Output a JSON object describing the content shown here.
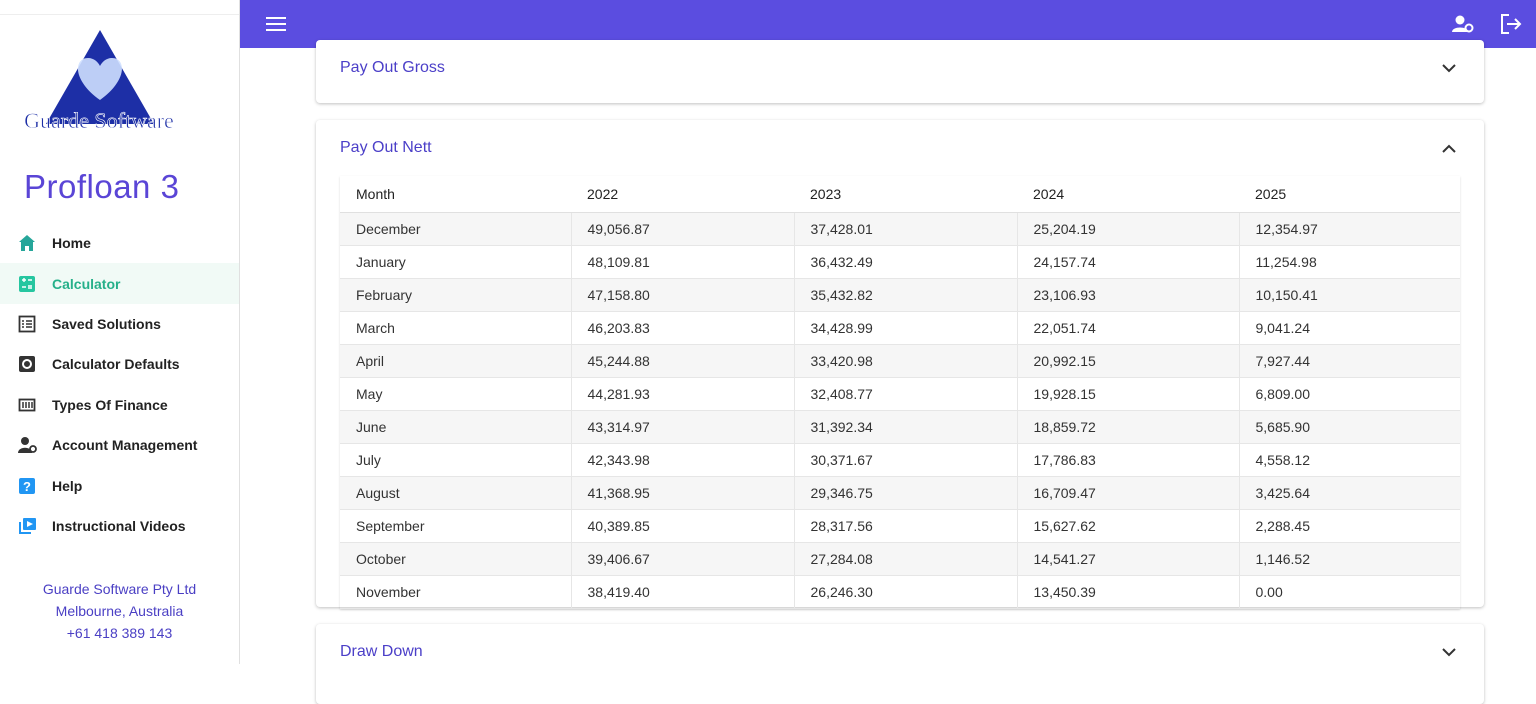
{
  "sidebar": {
    "logo_text": "Guarde Software",
    "app_title": "Profloan 3",
    "nav": [
      "Home",
      "Calculator",
      "Saved Solutions",
      "Calculator Defaults",
      "Types Of Finance",
      "Account Management",
      "Help",
      "Instructional Videos"
    ],
    "footer": [
      "Guarde Software Pty Ltd",
      "Melbourne, Australia",
      "+61 418 389 143"
    ]
  },
  "panels": [
    {
      "title": "Pay Out Gross"
    },
    {
      "title": "Pay Out Nett",
      "table": {
        "header": [
          "Month",
          "2022",
          "2023",
          "2024",
          "2025"
        ],
        "rows": [
          [
            "December",
            "49,056.87",
            "37,428.01",
            "25,204.19",
            "12,354.97"
          ],
          [
            "January",
            "48,109.81",
            "36,432.49",
            "24,157.74",
            "11,254.98"
          ],
          [
            "February",
            "47,158.80",
            "35,432.82",
            "23,106.93",
            "10,150.41"
          ],
          [
            "March",
            "46,203.83",
            "34,428.99",
            "22,051.74",
            "9,041.24"
          ],
          [
            "April",
            "45,244.88",
            "33,420.98",
            "20,992.15",
            "7,927.44"
          ],
          [
            "May",
            "44,281.93",
            "32,408.77",
            "19,928.15",
            "6,809.00"
          ],
          [
            "June",
            "43,314.97",
            "31,392.34",
            "18,859.72",
            "5,685.90"
          ],
          [
            "July",
            "42,343.98",
            "30,371.67",
            "17,786.83",
            "4,558.12"
          ],
          [
            "August",
            "41,368.95",
            "29,346.75",
            "16,709.47",
            "3,425.64"
          ],
          [
            "September",
            "40,389.85",
            "28,317.56",
            "15,627.62",
            "2,288.45"
          ],
          [
            "October",
            "39,406.67",
            "27,284.08",
            "14,541.27",
            "1,146.52"
          ],
          [
            "November",
            "38,419.40",
            "26,246.30",
            "13,450.39",
            "0.00"
          ]
        ]
      }
    },
    {
      "title": "Draw Down"
    }
  ]
}
